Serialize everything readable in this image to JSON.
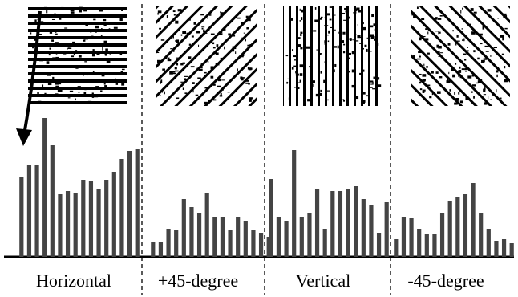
{
  "chart_data": {
    "type": "bar",
    "color": "#444444",
    "ylim": [
      0,
      180
    ],
    "panels": [
      {
        "label": "Horizontal",
        "values": [
          100,
          115,
          114,
          173,
          139,
          78,
          82,
          80,
          96,
          95,
          84,
          96,
          106,
          122,
          132,
          134
        ]
      },
      {
        "label": "+45-degree",
        "values": [
          18,
          18,
          35,
          33,
          72,
          62,
          55,
          80,
          50,
          50,
          33,
          50,
          45,
          33,
          30,
          25
        ]
      },
      {
        "label": "Vertical",
        "values": [
          97,
          50,
          45,
          133,
          50,
          55,
          85,
          35,
          82,
          82,
          84,
          88,
          72,
          65,
          30,
          68
        ]
      },
      {
        "label": "-45-degree",
        "values": [
          22,
          50,
          48,
          35,
          28,
          28,
          55,
          70,
          75,
          78,
          92,
          55,
          35,
          20,
          22,
          17
        ]
      }
    ]
  }
}
